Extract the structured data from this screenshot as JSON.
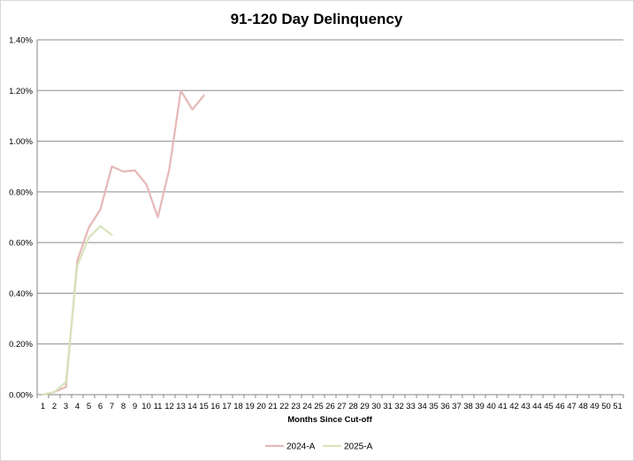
{
  "chart_data": {
    "type": "line",
    "title": "91-120 Day Delinquency",
    "xlabel": "Months Since Cut-off",
    "ylabel": "",
    "categories": [
      "1",
      "2",
      "3",
      "4",
      "5",
      "6",
      "7",
      "8",
      "9",
      "10",
      "11",
      "12",
      "13",
      "14",
      "15",
      "16",
      "17",
      "18",
      "19",
      "20",
      "21",
      "22",
      "23",
      "24",
      "25",
      "26",
      "27",
      "28",
      "29",
      "30",
      "31",
      "32",
      "33",
      "34",
      "35",
      "36",
      "37",
      "38",
      "39",
      "40",
      "41",
      "42",
      "43",
      "44",
      "45",
      "46",
      "47",
      "48",
      "49",
      "50",
      "51"
    ],
    "xlim": [
      1,
      51
    ],
    "ylim": [
      0,
      0.014
    ],
    "yticks": [
      "0.00%",
      "0.20%",
      "0.40%",
      "0.60%",
      "0.80%",
      "1.00%",
      "1.20%",
      "1.40%"
    ],
    "ytick_values": [
      0,
      0.002,
      0.004,
      0.006,
      0.008,
      0.01,
      0.012,
      0.014
    ],
    "grid": "horizontal",
    "legend_position": "bottom",
    "series": [
      {
        "name": "2024-A",
        "color": "#e6b9b8",
        "x": [
          1,
          2,
          3,
          4,
          5,
          6,
          7,
          8,
          9,
          10,
          11,
          12,
          13,
          14,
          15
        ],
        "values": [
          0.0,
          0.0001,
          0.0003,
          0.0053,
          0.0066,
          0.0073,
          0.009,
          0.0088,
          0.00885,
          0.0083,
          0.007,
          0.0089,
          0.012,
          0.01125,
          0.0118
        ]
      },
      {
        "name": "2025-A",
        "color": "#d7e4bd",
        "x": [
          1,
          2,
          3,
          4,
          5,
          6,
          7
        ],
        "values": [
          0.0,
          0.0001,
          0.0005,
          0.0051,
          0.0062,
          0.00665,
          0.0063
        ]
      }
    ]
  }
}
